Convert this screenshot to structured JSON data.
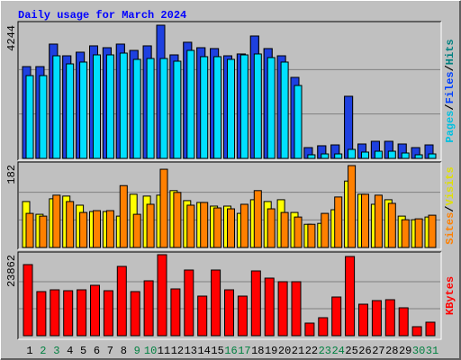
{
  "chart_data": {
    "type": "bar",
    "title": "Daily usage for March 2024",
    "title_color": "#0000ff",
    "categories": [
      "1",
      "2",
      "3",
      "4",
      "5",
      "6",
      "7",
      "8",
      "9",
      "10",
      "11",
      "12",
      "13",
      "14",
      "15",
      "16",
      "17",
      "18",
      "19",
      "20",
      "21",
      "22",
      "23",
      "24",
      "25",
      "26",
      "27",
      "28",
      "29",
      "30",
      "31"
    ],
    "weekend_days": [
      "2",
      "3",
      "9",
      "10",
      "16",
      "17",
      "23",
      "24",
      "30",
      "31"
    ],
    "weekend_label_color": "#008040",
    "separator": "/",
    "panels": [
      {
        "ylim": [
          0,
          4244
        ],
        "series": [
          {
            "name": "Pages",
            "color": "#00e0ff",
            "label_color": "#00c0e0",
            "values": [
              2638,
              2638,
              3269,
              3011,
              3069,
              3298,
              3298,
              3355,
              3155,
              3183,
              3183,
              3097,
              3441,
              3241,
              3241,
              3155,
              3298,
              3327,
              3212,
              3069,
              2323,
              115,
              143,
              143,
              287,
              201,
              229,
              229,
              172,
              115,
              143
            ]
          },
          {
            "name": "Files",
            "color": "#1e40e0",
            "label_color": "#0040ff",
            "values": [
              2925,
              2925,
              3642,
              3269,
              3384,
              3585,
              3527,
              3642,
              3441,
              3585,
              4244,
              3298,
              3700,
              3527,
              3499,
              3269,
              3327,
              3900,
              3499,
              3269,
              2581,
              344,
              402,
              430,
              1979,
              459,
              545,
              545,
              459,
              344,
              430
            ]
          },
          {
            "name": "Hits",
            "color": "#00805c",
            "label_color": "#008080",
            "values": [
              2925,
              2925,
              3642,
              3269,
              3384,
              3585,
              3527,
              3642,
              3441,
              3585,
              4244,
              3298,
              3700,
              3527,
              3499,
              3269,
              3327,
              3900,
              3499,
              3269,
              2581,
              344,
              402,
              430,
              1979,
              459,
              545,
              545,
              459,
              344,
              430
            ]
          }
        ]
      },
      {
        "ylim": [
          0,
          182
        ],
        "series": [
          {
            "name": "Sites",
            "color": "#ff8000",
            "label_color": "#ff8000",
            "values": [
              75,
              69,
              115,
              101,
              77,
              81,
              81,
              136,
              73,
              95,
              172,
              121,
              93,
              99,
              87,
              85,
              95,
              125,
              85,
              77,
              67,
              51,
              75,
              111,
              180,
              117,
              115,
              97,
              61,
              63,
              71
            ]
          },
          {
            "name": "Visits",
            "color": "#ffff00",
            "label_color": "#e0e000",
            "values": [
              101,
              73,
              107,
              113,
              93,
              79,
              79,
              69,
              117,
              113,
              115,
              125,
              103,
              99,
              91,
              91,
              75,
              105,
              101,
              105,
              77,
              51,
              53,
              83,
              146,
              117,
              95,
              105,
              69,
              61,
              67
            ]
          }
        ]
      },
      {
        "ylim": [
          0,
          23862
        ],
        "series": [
          {
            "name": "KBytes",
            "color": "#ff0000",
            "label_color": "#ff0000",
            "values": [
              20943,
              12990,
              13520,
              13255,
              13520,
              14846,
              13255,
              20413,
              12990,
              16171,
              23862,
              13785,
              19352,
              11664,
              19352,
              13520,
              11664,
              19087,
              16966,
              15906,
              15906,
              3711,
              5302,
              11399,
              23329,
              9279,
              10339,
              10604,
              8218,
              2651,
              3977
            ]
          }
        ]
      }
    ]
  }
}
